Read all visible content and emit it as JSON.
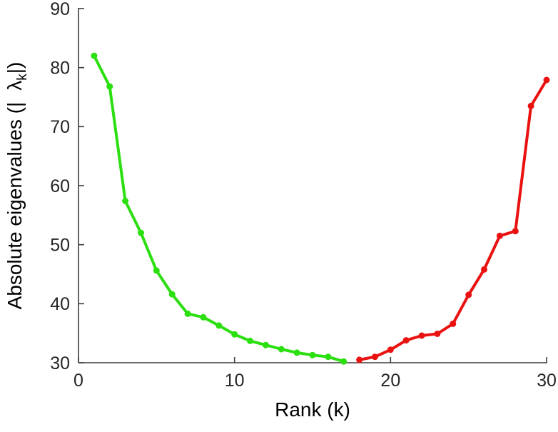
{
  "figure": {
    "background": "#ffffff"
  },
  "chart_data": {
    "type": "line",
    "title": "",
    "xlabel": "Rank (k)",
    "ylabel": "Absolute eigenvalues (|λk|)",
    "ylabel_parts": {
      "prefix": "Absolute eigenvalues (|",
      "lambda": "λ",
      "subscript": "k",
      "suffix": "|)"
    },
    "xlim": [
      0,
      30
    ],
    "ylim": [
      30,
      90
    ],
    "xticks": [
      0,
      10,
      20,
      30
    ],
    "yticks": [
      30,
      40,
      50,
      60,
      70,
      80,
      90
    ],
    "grid": false,
    "legend": "none",
    "axis_color": "#3d3d3d",
    "tick_label_color": "#262626",
    "marker": "circle",
    "series": [
      {
        "name": "leading-eigenvalues-green",
        "color": "#2bdf10",
        "x": [
          1,
          2,
          3,
          4,
          5,
          6,
          7,
          8,
          9,
          10,
          11,
          12,
          13,
          14,
          15,
          16,
          17
        ],
        "y": [
          82,
          76.8,
          57.4,
          52,
          45.6,
          41.6,
          38.3,
          37.7,
          36.3,
          34.8,
          33.7,
          33,
          32.3,
          31.7,
          31.3,
          31,
          30.2
        ]
      },
      {
        "name": "trailing-eigenvalues-red",
        "color": "#ea1210",
        "x": [
          18,
          19,
          20,
          21,
          22,
          23,
          24,
          25,
          26,
          27,
          28,
          29,
          30
        ],
        "y": [
          30.5,
          31,
          32.2,
          33.8,
          34.6,
          34.9,
          36.6,
          41.5,
          45.8,
          51.5,
          52.3,
          73.5,
          77.9
        ]
      }
    ]
  }
}
